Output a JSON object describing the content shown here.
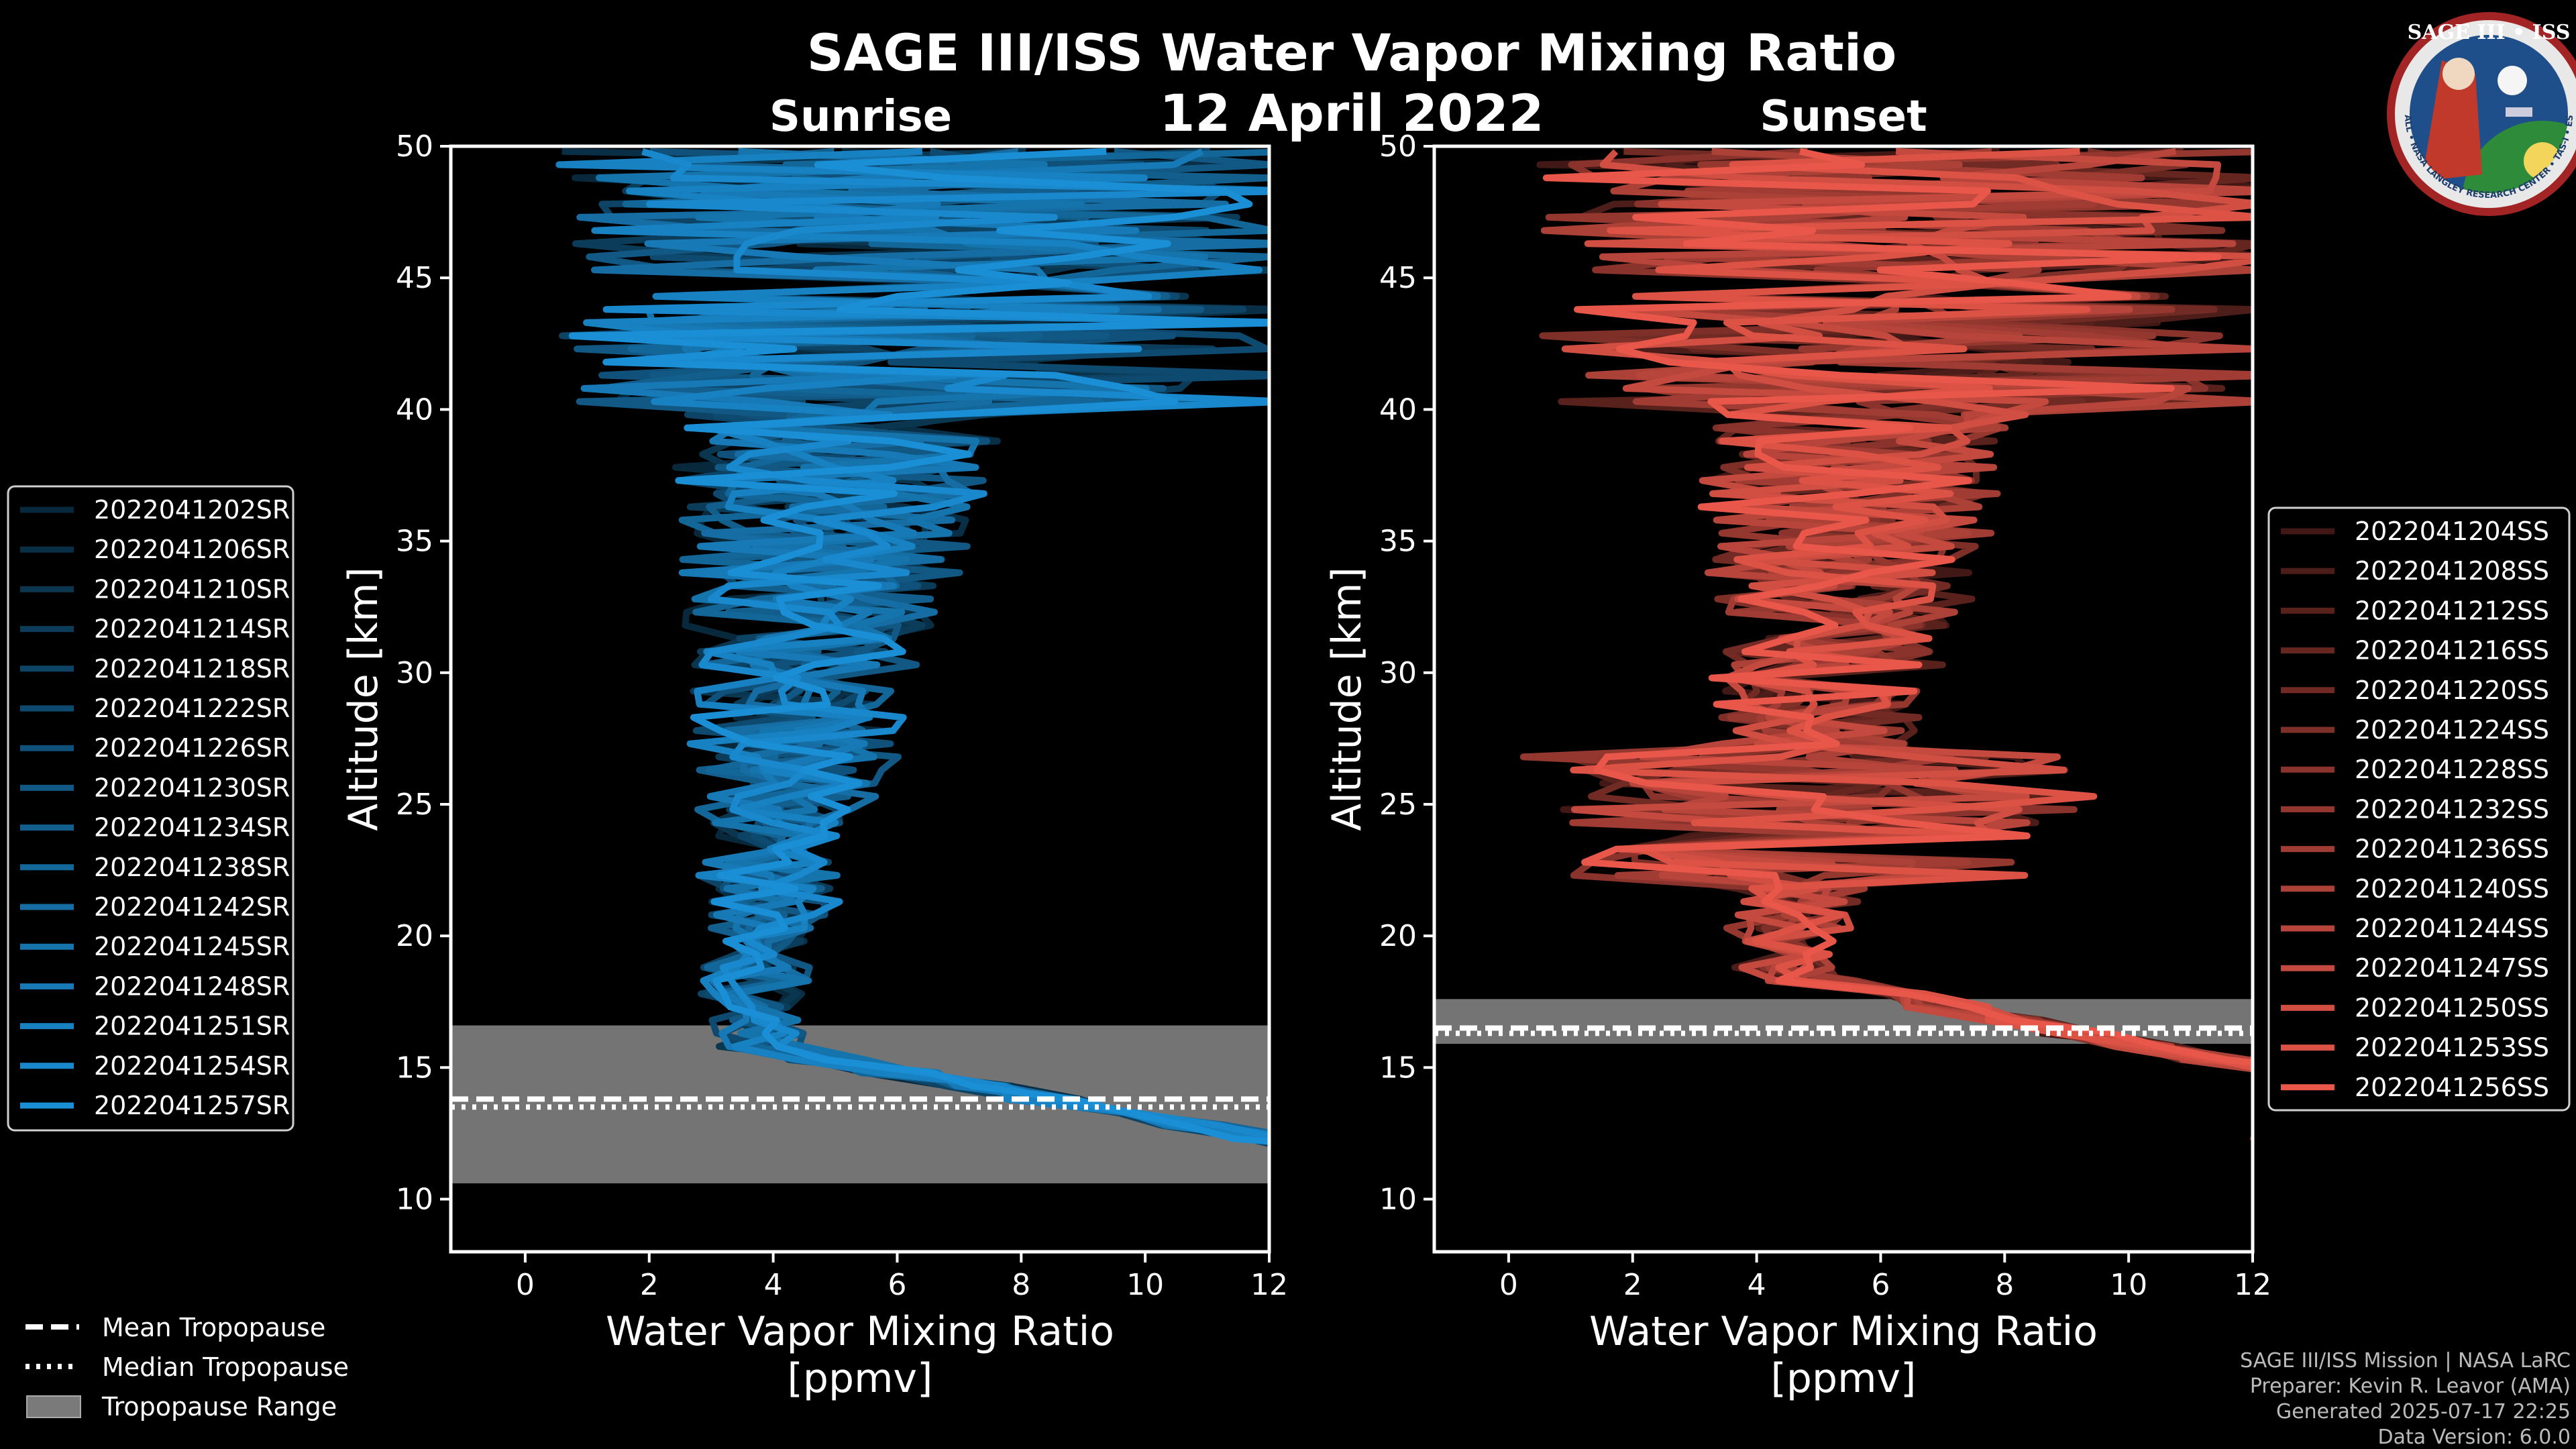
{
  "header": {
    "title": "SAGE III/ISS Water Vapor Mixing Ratio",
    "date": "12 April 2022"
  },
  "badge": {
    "text_top": "SAGE III • ISS",
    "text_ring": "BALL • NASA LANGLEY RESEARCH CENTER • TAS-I • ESA"
  },
  "colors": {
    "sunrise": "#1b8fd6",
    "sunset": "#e8574a",
    "tropopause_range": "#7a7a7a"
  },
  "chart_data": [
    {
      "type": "line",
      "panel": "left",
      "title": "Sunrise",
      "xlabel": "Water Vapor Mixing Ratio",
      "xlabel2": "[ppmv]",
      "ylabel": "Altitude [km]",
      "xlim": [
        -1.2,
        12
      ],
      "ylim": [
        8,
        50
      ],
      "xticks": [
        0,
        2,
        4,
        6,
        8,
        10,
        12
      ],
      "yticks": [
        10,
        15,
        20,
        25,
        30,
        35,
        40,
        45,
        50
      ],
      "tropopause": {
        "mean": 13.8,
        "median": 13.5,
        "range": [
          10.6,
          16.6
        ]
      },
      "legend_position": "left",
      "series": [
        {
          "name": "2022041202SR",
          "trop_wv": 3.6
        },
        {
          "name": "2022041206SR",
          "trop_wv": 3.8
        },
        {
          "name": "2022041210SR",
          "trop_wv": 3.7
        },
        {
          "name": "2022041214SR",
          "trop_wv": 3.9
        },
        {
          "name": "2022041218SR",
          "trop_wv": 3.5
        },
        {
          "name": "2022041222SR",
          "trop_wv": 3.6
        },
        {
          "name": "2022041226SR",
          "trop_wv": 3.8
        },
        {
          "name": "2022041230SR",
          "trop_wv": 4.0
        },
        {
          "name": "2022041234SR",
          "trop_wv": 3.7
        },
        {
          "name": "2022041238SR",
          "trop_wv": 3.6
        },
        {
          "name": "2022041242SR",
          "trop_wv": 3.9
        },
        {
          "name": "2022041245SR",
          "trop_wv": 3.8
        },
        {
          "name": "2022041248SR",
          "trop_wv": 3.7
        },
        {
          "name": "2022041251SR",
          "trop_wv": 3.5
        },
        {
          "name": "2022041254SR",
          "trop_wv": 3.9
        },
        {
          "name": "2022041257SR",
          "trop_wv": 3.6
        }
      ]
    },
    {
      "type": "line",
      "panel": "right",
      "title": "Sunset",
      "xlabel": "Water Vapor Mixing Ratio",
      "xlabel2": "[ppmv]",
      "ylabel": "Altitude [km]",
      "xlim": [
        -1.2,
        12
      ],
      "ylim": [
        8,
        50
      ],
      "xticks": [
        0,
        2,
        4,
        6,
        8,
        10,
        12
      ],
      "yticks": [
        10,
        15,
        20,
        25,
        30,
        35,
        40,
        45,
        50
      ],
      "tropopause": {
        "mean": 16.5,
        "median": 16.3,
        "range": [
          15.9,
          17.6
        ]
      },
      "legend_position": "right",
      "series": [
        {
          "name": "2022041204SS",
          "trop_wv": 4.4
        },
        {
          "name": "2022041208SS",
          "trop_wv": 4.2
        },
        {
          "name": "2022041212SS",
          "trop_wv": 4.6
        },
        {
          "name": "2022041216SS",
          "trop_wv": 4.3
        },
        {
          "name": "2022041220SS",
          "trop_wv": 4.5
        },
        {
          "name": "2022041224SS",
          "trop_wv": 4.4
        },
        {
          "name": "2022041228SS",
          "trop_wv": 4.7
        },
        {
          "name": "2022041232SS",
          "trop_wv": 4.2
        },
        {
          "name": "2022041236SS",
          "trop_wv": 4.5
        },
        {
          "name": "2022041240SS",
          "trop_wv": 4.6
        },
        {
          "name": "2022041244SS",
          "trop_wv": 4.3
        },
        {
          "name": "2022041247SS",
          "trop_wv": 4.4
        },
        {
          "name": "2022041250SS",
          "trop_wv": 4.5
        },
        {
          "name": "2022041253SS",
          "trop_wv": 4.7
        },
        {
          "name": "2022041256SS",
          "trop_wv": 4.3
        }
      ]
    }
  ],
  "tropopause_legend": {
    "mean": "Mean Tropopause",
    "median": "Median Tropopause",
    "range": "Tropopause Range"
  },
  "credits": {
    "mission": "SAGE III/ISS Mission | NASA LaRC",
    "preparer": "Preparer: Kevin R. Leavor (AMA)",
    "generated": "Generated 2025-07-17 22:25",
    "version": "Data Version: 6.0.0"
  }
}
